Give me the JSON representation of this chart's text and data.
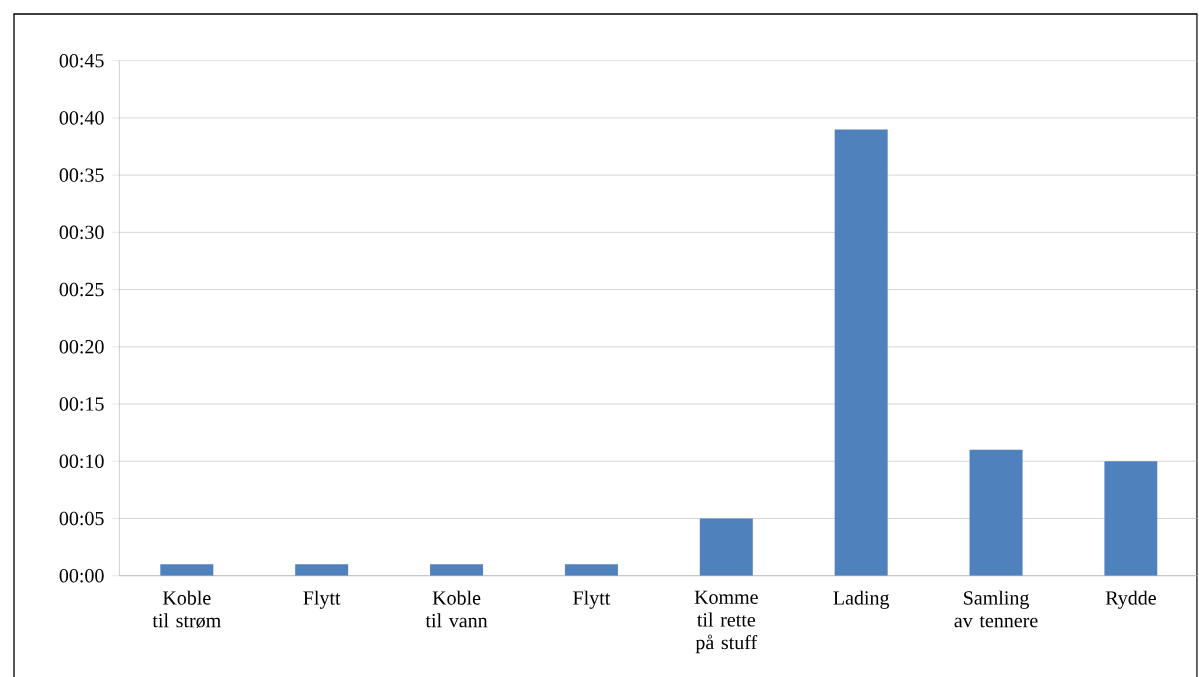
{
  "chart_data": {
    "type": "bar",
    "categories": [
      "Koble til strøm",
      "Flytt",
      "Koble til vann",
      "Flytt",
      "Komme til rette på stuff",
      "Lading",
      "Samling av tennere",
      "Rydde"
    ],
    "values": [
      1,
      1,
      1,
      1,
      5,
      39,
      11,
      10
    ],
    "color": "#4f81bd",
    "ylim": [
      0,
      45
    ],
    "yticks": [
      {
        "value": 0,
        "label": "00:00"
      },
      {
        "value": 5,
        "label": "00:05"
      },
      {
        "value": 10,
        "label": "00:10"
      },
      {
        "value": 15,
        "label": "00:15"
      },
      {
        "value": 20,
        "label": "00:20"
      },
      {
        "value": 25,
        "label": "00:25"
      },
      {
        "value": 30,
        "label": "00:30"
      },
      {
        "value": 35,
        "label": "00:35"
      },
      {
        "value": 40,
        "label": "00:40"
      },
      {
        "value": 45,
        "label": "00:45"
      }
    ],
    "grid": "y"
  }
}
